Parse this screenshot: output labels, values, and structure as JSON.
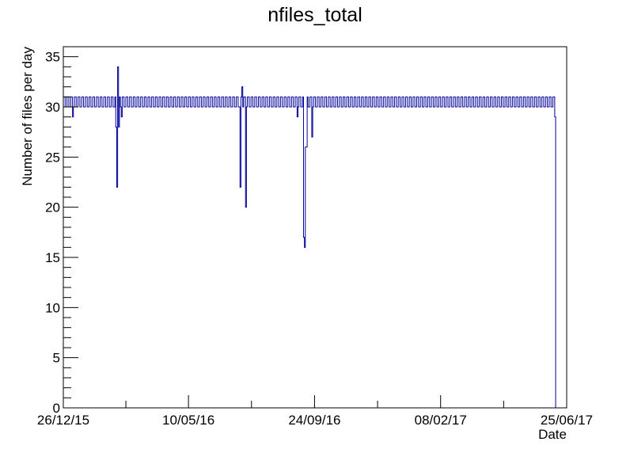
{
  "chart_data": {
    "type": "line",
    "title": "nfiles_total",
    "xlabel": "Date",
    "ylabel": "Number of files per day",
    "x_axis": {
      "kind": "date",
      "range": [
        "2015-12-26",
        "2017-06-25"
      ],
      "tick_labels": [
        {
          "date": "2015-12-26",
          "label": "26/12/15"
        },
        {
          "date": "2016-05-10",
          "label": "10/05/16"
        },
        {
          "date": "2016-09-24",
          "label": "24/09/16"
        },
        {
          "date": "2017-02-08",
          "label": "08/02/17"
        },
        {
          "date": "2017-06-25",
          "label": "25/06/17"
        }
      ]
    },
    "y_axis": {
      "range": [
        0,
        36
      ],
      "ticks": [
        0,
        5,
        10,
        15,
        20,
        25,
        30,
        35
      ]
    },
    "grid": false,
    "legend": "none",
    "colors": {
      "line": "#000099",
      "frame": "#000000"
    },
    "series": [
      {
        "style": "step",
        "baseline": 30,
        "upper": 31,
        "period_days": 2,
        "start": "2015-12-26",
        "end": "2017-06-13",
        "notable_points": [
          {
            "x": "2016-01-05",
            "y": 29
          },
          {
            "x": "2016-02-21",
            "y": 28
          },
          {
            "x": "2016-02-22",
            "y": 22
          },
          {
            "x": "2016-02-23",
            "y": 34
          },
          {
            "x": "2016-02-24",
            "y": 28
          },
          {
            "x": "2016-02-27",
            "y": 29
          },
          {
            "x": "2016-07-05",
            "y": 22
          },
          {
            "x": "2016-07-07",
            "y": 32
          },
          {
            "x": "2016-07-11",
            "y": 20
          },
          {
            "x": "2016-09-05",
            "y": 29
          },
          {
            "x": "2016-09-12",
            "y": 17
          },
          {
            "x": "2016-09-13",
            "y": 16
          },
          {
            "x": "2016-09-14",
            "y": 26
          },
          {
            "x": "2016-09-15",
            "y": 26
          },
          {
            "x": "2016-09-21",
            "y": 27
          },
          {
            "x": "2017-06-12",
            "y": 29
          },
          {
            "x": "2017-06-13",
            "y": 0
          }
        ]
      }
    ]
  }
}
